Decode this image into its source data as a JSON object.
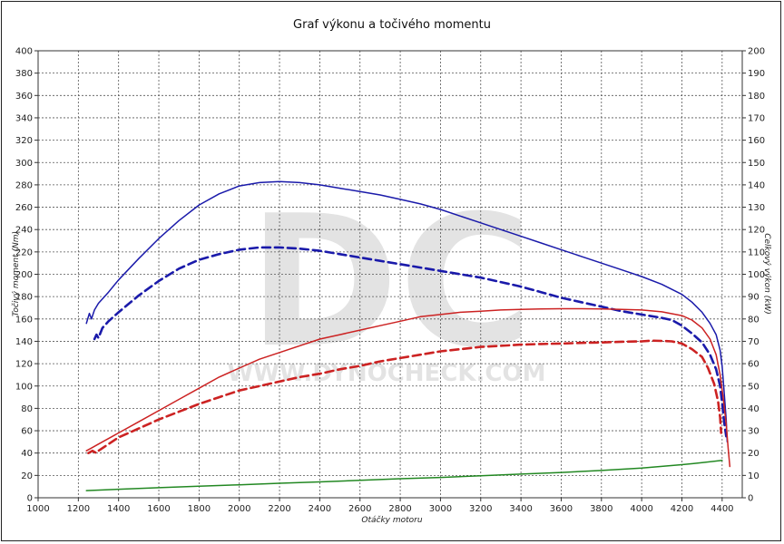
{
  "chart_data": {
    "type": "line",
    "title": "Graf výkonu a točivého momentu",
    "xlabel": "Otáčky motoru",
    "ylabel_left": "Točivý moment (Nm)",
    "ylabel_right": "Celkový výkon (kW)",
    "watermark": "DC",
    "watermark_url": "WWW.DYNOCHECK.COM",
    "xlim": [
      1000,
      4500
    ],
    "ylim_left": [
      0,
      400
    ],
    "ylim_right": [
      0,
      200
    ],
    "x_ticks": [
      "1000",
      "1200",
      "1400",
      "1600",
      "1800",
      "2000",
      "2200",
      "2400",
      "2600",
      "2800",
      "3000",
      "3200",
      "3400",
      "3600",
      "3800",
      "4000",
      "4200",
      "4400"
    ],
    "y_ticks_left": [
      "0",
      "20",
      "40",
      "60",
      "80",
      "100",
      "120",
      "140",
      "160",
      "180",
      "200",
      "220",
      "240",
      "260",
      "280",
      "300",
      "320",
      "340",
      "360",
      "380",
      "400"
    ],
    "y_ticks_right": [
      "0",
      "10",
      "20",
      "30",
      "40",
      "50",
      "60",
      "70",
      "80",
      "90",
      "100",
      "110",
      "120",
      "130",
      "140",
      "150",
      "160",
      "170",
      "180",
      "190",
      "200"
    ],
    "grid": true,
    "colors": {
      "torque": "#1a1aaa",
      "power": "#cc2222",
      "loss": "#228822",
      "grid": "#555555"
    },
    "series": [
      {
        "axis": "left",
        "color": "#1a1aaa",
        "dashed": false,
        "points": [
          [
            1240,
            156
          ],
          [
            1255,
            165
          ],
          [
            1265,
            160
          ],
          [
            1280,
            168
          ],
          [
            1300,
            174
          ],
          [
            1350,
            184
          ],
          [
            1400,
            195
          ],
          [
            1500,
            214
          ],
          [
            1600,
            232
          ],
          [
            1700,
            248
          ],
          [
            1800,
            262
          ],
          [
            1900,
            272
          ],
          [
            2000,
            279
          ],
          [
            2100,
            282
          ],
          [
            2200,
            283
          ],
          [
            2300,
            282
          ],
          [
            2400,
            280
          ],
          [
            2500,
            277
          ],
          [
            2600,
            274
          ],
          [
            2700,
            271
          ],
          [
            2800,
            267
          ],
          [
            2900,
            263
          ],
          [
            3000,
            258
          ],
          [
            3100,
            252
          ],
          [
            3200,
            246
          ],
          [
            3300,
            240
          ],
          [
            3400,
            234
          ],
          [
            3500,
            228
          ],
          [
            3600,
            222
          ],
          [
            3700,
            216
          ],
          [
            3800,
            210
          ],
          [
            3900,
            204
          ],
          [
            4000,
            198
          ],
          [
            4100,
            191
          ],
          [
            4200,
            182
          ],
          [
            4250,
            175
          ],
          [
            4300,
            166
          ],
          [
            4340,
            156
          ],
          [
            4370,
            146
          ],
          [
            4390,
            132
          ],
          [
            4400,
            118
          ],
          [
            4410,
            95
          ],
          [
            4420,
            70
          ],
          [
            4425,
            50
          ]
        ]
      },
      {
        "axis": "left",
        "color": "#1a1aaa",
        "dashed": true,
        "points": [
          [
            1280,
            142
          ],
          [
            1290,
            146
          ],
          [
            1300,
            143
          ],
          [
            1320,
            152
          ],
          [
            1350,
            158
          ],
          [
            1400,
            166
          ],
          [
            1500,
            181
          ],
          [
            1600,
            194
          ],
          [
            1700,
            205
          ],
          [
            1800,
            213
          ],
          [
            1900,
            218
          ],
          [
            2000,
            222
          ],
          [
            2100,
            224
          ],
          [
            2200,
            224
          ],
          [
            2300,
            223
          ],
          [
            2400,
            221
          ],
          [
            2500,
            218
          ],
          [
            2600,
            215
          ],
          [
            2700,
            212
          ],
          [
            2800,
            209
          ],
          [
            2900,
            206
          ],
          [
            3000,
            203
          ],
          [
            3100,
            200
          ],
          [
            3200,
            197
          ],
          [
            3300,
            193
          ],
          [
            3400,
            189
          ],
          [
            3500,
            184
          ],
          [
            3600,
            179
          ],
          [
            3700,
            175
          ],
          [
            3800,
            171
          ],
          [
            3900,
            167
          ],
          [
            4000,
            164
          ],
          [
            4100,
            161
          ],
          [
            4150,
            159
          ],
          [
            4200,
            154
          ],
          [
            4250,
            147
          ],
          [
            4300,
            139
          ],
          [
            4340,
            128
          ],
          [
            4370,
            115
          ],
          [
            4390,
            100
          ],
          [
            4400,
            85
          ],
          [
            4410,
            68
          ],
          [
            4420,
            55
          ]
        ]
      },
      {
        "axis": "right",
        "color": "#cc2222",
        "dashed": false,
        "points": [
          [
            1240,
            21
          ],
          [
            1260,
            22
          ],
          [
            1300,
            24
          ],
          [
            1400,
            29
          ],
          [
            1500,
            34
          ],
          [
            1600,
            39
          ],
          [
            1700,
            44
          ],
          [
            1800,
            49
          ],
          [
            1900,
            54
          ],
          [
            2000,
            58
          ],
          [
            2100,
            62
          ],
          [
            2200,
            65
          ],
          [
            2300,
            68
          ],
          [
            2400,
            71
          ],
          [
            2500,
            73
          ],
          [
            2600,
            75
          ],
          [
            2700,
            77
          ],
          [
            2800,
            79
          ],
          [
            2900,
            81
          ],
          [
            3000,
            82
          ],
          [
            3100,
            83
          ],
          [
            3200,
            83.5
          ],
          [
            3300,
            84
          ],
          [
            3400,
            84.3
          ],
          [
            3500,
            84.5
          ],
          [
            3600,
            84.6
          ],
          [
            3700,
            84.6
          ],
          [
            3800,
            84.5
          ],
          [
            3900,
            84.3
          ],
          [
            4000,
            84
          ],
          [
            4100,
            83.2
          ],
          [
            4200,
            81.5
          ],
          [
            4250,
            79.5
          ],
          [
            4300,
            76
          ],
          [
            4340,
            71
          ],
          [
            4370,
            64
          ],
          [
            4390,
            55
          ],
          [
            4405,
            45
          ],
          [
            4420,
            33
          ],
          [
            4430,
            22
          ],
          [
            4438,
            14
          ]
        ]
      },
      {
        "axis": "right",
        "color": "#cc2222",
        "dashed": true,
        "points": [
          [
            1250,
            20
          ],
          [
            1270,
            21
          ],
          [
            1290,
            20
          ],
          [
            1300,
            21
          ],
          [
            1350,
            24
          ],
          [
            1400,
            27
          ],
          [
            1500,
            31
          ],
          [
            1600,
            35
          ],
          [
            1700,
            38.5
          ],
          [
            1800,
            42
          ],
          [
            1900,
            45
          ],
          [
            2000,
            48
          ],
          [
            2100,
            50
          ],
          [
            2200,
            52
          ],
          [
            2300,
            54
          ],
          [
            2400,
            55.5
          ],
          [
            2500,
            57.5
          ],
          [
            2600,
            59
          ],
          [
            2700,
            61
          ],
          [
            2800,
            62.5
          ],
          [
            2900,
            64
          ],
          [
            3000,
            65.5
          ],
          [
            3100,
            66.5
          ],
          [
            3200,
            67.5
          ],
          [
            3300,
            68
          ],
          [
            3400,
            68.5
          ],
          [
            3500,
            68.8
          ],
          [
            3600,
            69
          ],
          [
            3700,
            69.3
          ],
          [
            3800,
            69.5
          ],
          [
            3900,
            69.8
          ],
          [
            4000,
            70
          ],
          [
            4050,
            70.3
          ],
          [
            4100,
            70.2
          ],
          [
            4150,
            70
          ],
          [
            4200,
            69
          ],
          [
            4250,
            66.5
          ],
          [
            4300,
            63
          ],
          [
            4330,
            58
          ],
          [
            4360,
            51
          ],
          [
            4380,
            43
          ],
          [
            4390,
            36
          ],
          [
            4395,
            29
          ]
        ]
      },
      {
        "axis": "right",
        "color": "#228822",
        "dashed": false,
        "points": [
          [
            1240,
            3.2
          ],
          [
            1400,
            3.8
          ],
          [
            1600,
            4.5
          ],
          [
            1800,
            5.2
          ],
          [
            2000,
            5.8
          ],
          [
            2200,
            6.5
          ],
          [
            2400,
            7.1
          ],
          [
            2600,
            7.8
          ],
          [
            2800,
            8.5
          ],
          [
            3000,
            9.1
          ],
          [
            3200,
            9.8
          ],
          [
            3400,
            10.6
          ],
          [
            3600,
            11.3
          ],
          [
            3800,
            12.2
          ],
          [
            4000,
            13.3
          ],
          [
            4200,
            14.8
          ],
          [
            4300,
            15.7
          ],
          [
            4400,
            16.7
          ]
        ]
      }
    ]
  }
}
